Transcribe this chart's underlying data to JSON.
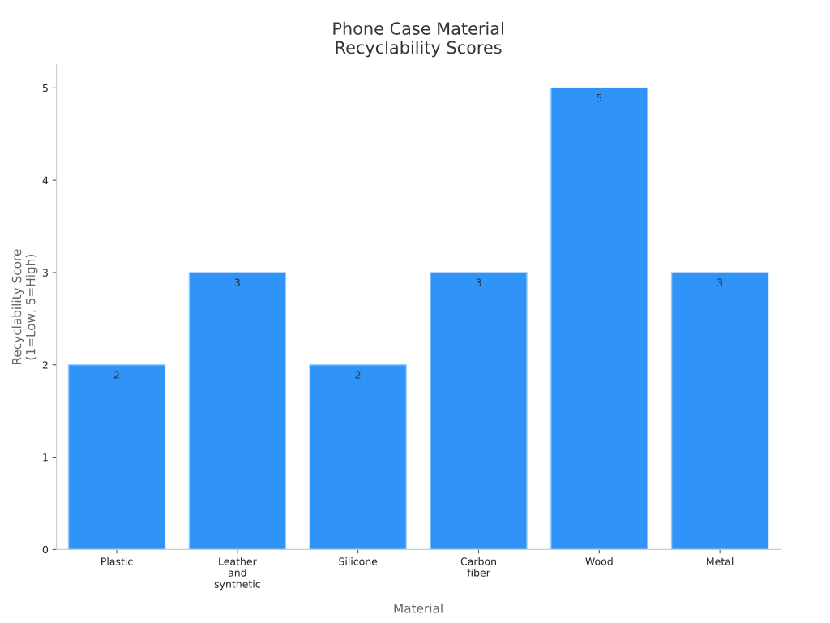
{
  "chart_data": {
    "type": "bar",
    "title": "Phone Case Material\nRecyclability Scores",
    "xlabel": "Material",
    "ylabel": "Recyclability Score\n(1=Low, 5=High)",
    "categories": [
      "Plastic",
      "Leather\nand\nsynthetic",
      "Silicone",
      "Carbon\nfiber",
      "Wood",
      "Metal"
    ],
    "values": [
      2,
      3,
      2,
      3,
      5,
      3
    ],
    "color": "#2f93f8",
    "ylim": [
      0,
      5.25
    ],
    "yticks": [
      0,
      1,
      2,
      3,
      4,
      5
    ],
    "grid": false,
    "legend": false,
    "data_labels": true
  }
}
